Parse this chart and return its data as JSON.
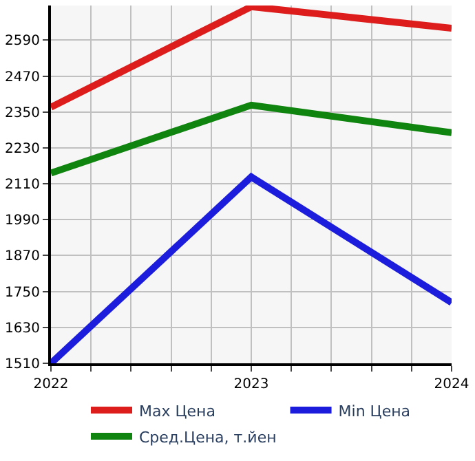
{
  "chart_data": {
    "type": "line",
    "x": [
      2022,
      2023,
      2024
    ],
    "series": [
      {
        "name": "Max Цена",
        "color": "#dd1c1c",
        "values": [
          2366,
          2702,
          2630
        ]
      },
      {
        "name": "Min Цена",
        "color": "#1c1cdd",
        "values": [
          1510,
          2133,
          1713
        ]
      },
      {
        "name": "Сред.Цена, т.йен",
        "color": "#0f850f",
        "values": [
          2146,
          2373,
          2281
        ]
      }
    ],
    "xlim": [
      2022,
      2024
    ],
    "xticks": [
      2022,
      {
        "value": 2022.2,
        "label": null
      },
      {
        "value": 2022.4,
        "label": null
      },
      {
        "value": 2022.6,
        "label": null
      },
      {
        "value": 2022.8,
        "label": null
      },
      2023,
      {
        "value": 2023.2,
        "label": null
      },
      {
        "value": 2023.4,
        "label": null
      },
      {
        "value": 2023.6,
        "label": null
      },
      {
        "value": 2023.8,
        "label": null
      },
      2024
    ],
    "ylim": [
      1510,
      2706
    ],
    "yticks": [
      1510,
      1630,
      1750,
      1870,
      1990,
      2110,
      2230,
      2350,
      2470,
      2590
    ],
    "grid": true,
    "legend": "bottom",
    "marker": "none",
    "line_style": "solid"
  }
}
